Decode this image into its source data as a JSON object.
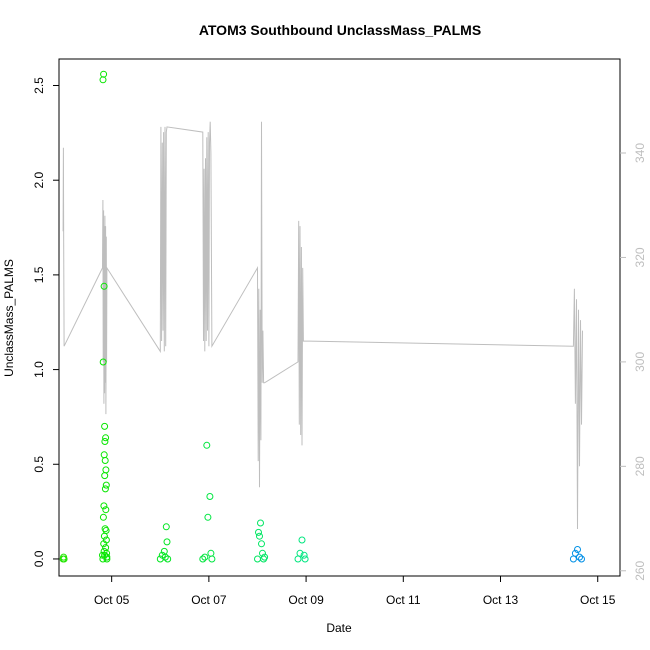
{
  "chart_data": {
    "type": "scatter",
    "title": "ATOM3 Southbound UnclassMass_PALMS",
    "xlabel": "Date",
    "ylabel": "UnclassMass_PALMS",
    "x_ticks": [
      "Oct 05",
      "Oct 07",
      "Oct 09",
      "Oct 11",
      "Oct 13",
      "Oct 15"
    ],
    "y_ticks": [
      "0.0",
      "0.5",
      "1.0",
      "1.5",
      "2.0",
      "2.5"
    ],
    "y2_ticks": [
      "260",
      "280",
      "300",
      "320",
      "340"
    ],
    "xlim": [
      "2017-10-03T22:00",
      "2017-10-15T11:00"
    ],
    "ylim": [
      -0.09,
      2.64
    ],
    "y2lim": [
      259,
      358
    ],
    "y2_color": "#bebebe",
    "series": [
      {
        "marker": "circle",
        "points": [
          [
            "2017-10-04T00:00",
            0.0
          ],
          [
            "2017-10-04T00:15",
            0.01
          ],
          [
            "2017-10-04T00:30",
            0.0
          ],
          [
            "2017-10-04T19:30",
            0.02
          ],
          [
            "2017-10-04T19:45",
            2.53
          ],
          [
            "2017-10-04T20:00",
            2.56
          ],
          [
            "2017-10-04T20:15",
            1.44
          ],
          [
            "2017-10-04T19:50",
            1.04
          ],
          [
            "2017-10-04T20:30",
            0.7
          ],
          [
            "2017-10-04T21:00",
            0.64
          ],
          [
            "2017-10-04T20:40",
            0.62
          ],
          [
            "2017-10-04T20:20",
            0.55
          ],
          [
            "2017-10-04T20:50",
            0.52
          ],
          [
            "2017-10-04T21:10",
            0.47
          ],
          [
            "2017-10-04T20:35",
            0.44
          ],
          [
            "2017-10-04T21:20",
            0.39
          ],
          [
            "2017-10-04T20:55",
            0.37
          ],
          [
            "2017-10-04T20:10",
            0.28
          ],
          [
            "2017-10-04T21:05",
            0.26
          ],
          [
            "2017-10-04T19:55",
            0.22
          ],
          [
            "2017-10-04T20:45",
            0.16
          ],
          [
            "2017-10-04T21:15",
            0.15
          ],
          [
            "2017-10-04T20:25",
            0.12
          ],
          [
            "2017-10-04T21:25",
            0.1
          ],
          [
            "2017-10-04T20:05",
            0.08
          ],
          [
            "2017-10-04T21:00",
            0.06
          ],
          [
            "2017-10-04T20:15",
            0.04
          ],
          [
            "2017-10-04T21:30",
            0.03
          ],
          [
            "2017-10-04T20:30",
            0.02
          ],
          [
            "2017-10-04T21:35",
            0.01
          ],
          [
            "2017-10-04T19:40",
            0.0
          ],
          [
            "2017-10-04T21:40",
            0.0
          ],
          [
            "2017-10-06T00:00",
            0.0
          ],
          [
            "2017-10-06T01:00",
            0.02
          ],
          [
            "2017-10-06T02:00",
            0.04
          ],
          [
            "2017-10-06T03:00",
            0.17
          ],
          [
            "2017-10-06T03:20",
            0.09
          ],
          [
            "2017-10-06T02:30",
            0.01
          ],
          [
            "2017-10-06T03:40",
            0.0
          ],
          [
            "2017-10-06T21:00",
            0.0
          ],
          [
            "2017-10-06T22:00",
            0.01
          ],
          [
            "2017-10-06T23:00",
            0.6
          ],
          [
            "2017-10-06T23:30",
            0.22
          ],
          [
            "2017-10-07T00:30",
            0.33
          ],
          [
            "2017-10-07T01:00",
            0.03
          ],
          [
            "2017-10-07T01:30",
            0.0
          ],
          [
            "2017-10-08T00:00",
            0.0
          ],
          [
            "2017-10-08T00:30",
            0.14
          ],
          [
            "2017-10-08T01:00",
            0.12
          ],
          [
            "2017-10-08T01:30",
            0.19
          ],
          [
            "2017-10-08T02:00",
            0.08
          ],
          [
            "2017-10-08T02:30",
            0.03
          ],
          [
            "2017-10-08T03:00",
            0.0
          ],
          [
            "2017-10-08T03:30",
            0.01
          ],
          [
            "2017-10-08T20:00",
            0.0
          ],
          [
            "2017-10-08T21:00",
            0.03
          ],
          [
            "2017-10-08T22:00",
            0.1
          ],
          [
            "2017-10-08T23:00",
            0.02
          ],
          [
            "2017-10-08T23:30",
            0.0
          ],
          [
            "2017-10-14T12:00",
            0.0
          ],
          [
            "2017-10-14T13:00",
            0.03
          ],
          [
            "2017-10-14T14:00",
            0.05
          ],
          [
            "2017-10-14T15:00",
            0.01
          ],
          [
            "2017-10-14T16:00",
            0.0
          ]
        ]
      },
      {
        "axis": "right",
        "line": true,
        "points": [
          [
            "2017-10-04T00:00",
            325
          ],
          [
            "2017-10-04T00:10",
            341
          ],
          [
            "2017-10-04T00:20",
            322
          ],
          [
            "2017-10-04T00:30",
            303
          ],
          [
            "2017-10-04T19:30",
            318
          ],
          [
            "2017-10-04T19:40",
            331
          ],
          [
            "2017-10-04T19:50",
            300
          ],
          [
            "2017-10-04T20:00",
            329
          ],
          [
            "2017-10-04T20:10",
            292
          ],
          [
            "2017-10-04T20:20",
            326
          ],
          [
            "2017-10-04T20:30",
            294
          ],
          [
            "2017-10-04T20:40",
            328
          ],
          [
            "2017-10-04T20:50",
            296
          ],
          [
            "2017-10-04T21:00",
            326
          ],
          [
            "2017-10-04T21:10",
            290
          ],
          [
            "2017-10-04T21:20",
            324
          ],
          [
            "2017-10-04T21:30",
            300
          ],
          [
            "2017-10-04T21:40",
            318
          ],
          [
            "2017-10-06T00:00",
            302
          ],
          [
            "2017-10-06T00:20",
            345
          ],
          [
            "2017-10-06T00:40",
            304
          ],
          [
            "2017-10-06T01:00",
            342
          ],
          [
            "2017-10-06T01:20",
            306
          ],
          [
            "2017-10-06T01:40",
            344
          ],
          [
            "2017-10-06T02:00",
            302
          ],
          [
            "2017-10-06T02:20",
            345
          ],
          [
            "2017-10-06T02:40",
            303
          ],
          [
            "2017-10-06T03:00",
            344
          ],
          [
            "2017-10-06T03:20",
            345
          ],
          [
            "2017-10-06T21:00",
            344
          ],
          [
            "2017-10-06T21:20",
            304
          ],
          [
            "2017-10-06T21:40",
            337
          ],
          [
            "2017-10-06T22:00",
            302
          ],
          [
            "2017-10-06T22:20",
            339
          ],
          [
            "2017-10-06T22:40",
            304
          ],
          [
            "2017-10-06T23:00",
            343
          ],
          [
            "2017-10-06T23:20",
            306
          ],
          [
            "2017-10-06T23:40",
            344
          ],
          [
            "2017-10-07T00:00",
            303
          ],
          [
            "2017-10-07T00:20",
            342
          ],
          [
            "2017-10-07T00:40",
            346
          ],
          [
            "2017-10-07T01:00",
            340
          ],
          [
            "2017-10-07T01:30",
            303
          ],
          [
            "2017-10-08T00:00",
            318
          ],
          [
            "2017-10-08T00:20",
            281
          ],
          [
            "2017-10-08T00:40",
            314
          ],
          [
            "2017-10-08T01:00",
            276
          ],
          [
            "2017-10-08T01:20",
            310
          ],
          [
            "2017-10-08T01:40",
            285
          ],
          [
            "2017-10-08T02:00",
            346
          ],
          [
            "2017-10-08T02:20",
            296
          ],
          [
            "2017-10-08T02:40",
            306
          ],
          [
            "2017-10-08T03:00",
            296
          ],
          [
            "2017-10-08T03:30",
            296
          ],
          [
            "2017-10-08T20:00",
            300
          ],
          [
            "2017-10-08T20:20",
            327
          ],
          [
            "2017-10-08T20:40",
            288
          ],
          [
            "2017-10-08T21:00",
            326
          ],
          [
            "2017-10-08T21:20",
            286
          ],
          [
            "2017-10-08T21:40",
            322
          ],
          [
            "2017-10-08T22:00",
            284
          ],
          [
            "2017-10-08T22:20",
            318
          ],
          [
            "2017-10-08T22:40",
            304
          ],
          [
            "2017-10-14T12:00",
            303
          ],
          [
            "2017-10-14T12:30",
            314
          ],
          [
            "2017-10-14T13:00",
            292
          ],
          [
            "2017-10-14T13:30",
            312
          ],
          [
            "2017-10-14T14:00",
            268
          ],
          [
            "2017-10-14T14:30",
            310
          ],
          [
            "2017-10-14T15:00",
            280
          ],
          [
            "2017-10-14T15:30",
            308
          ],
          [
            "2017-10-14T16:00",
            288
          ],
          [
            "2017-10-14T16:30",
            306
          ]
        ]
      }
    ]
  }
}
